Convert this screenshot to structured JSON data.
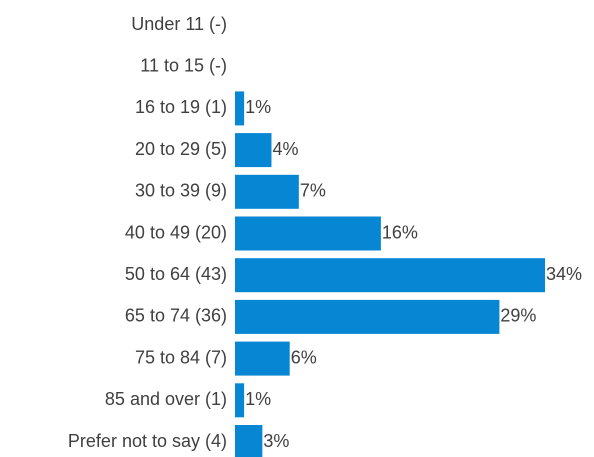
{
  "chart_data": {
    "type": "hbar",
    "categories": [
      "Under 11 (-)",
      "11 to 15 (-)",
      "16 to 19 (1)",
      "20 to 29 (5)",
      "30 to 39 (9)",
      "40 to 49 (20)",
      "50 to 64 (43)",
      "65 to 74 (36)",
      "75 to 84 (7)",
      "85 and over (1)",
      "Prefer not to say (4)"
    ],
    "values": [
      null,
      null,
      1,
      4,
      7,
      16,
      34,
      29,
      6,
      1,
      3
    ],
    "value_labels": [
      null,
      null,
      "1%",
      "4%",
      "7%",
      "16%",
      "34%",
      "29%",
      "6%",
      "1%",
      "3%"
    ],
    "color": "#0787d3"
  }
}
